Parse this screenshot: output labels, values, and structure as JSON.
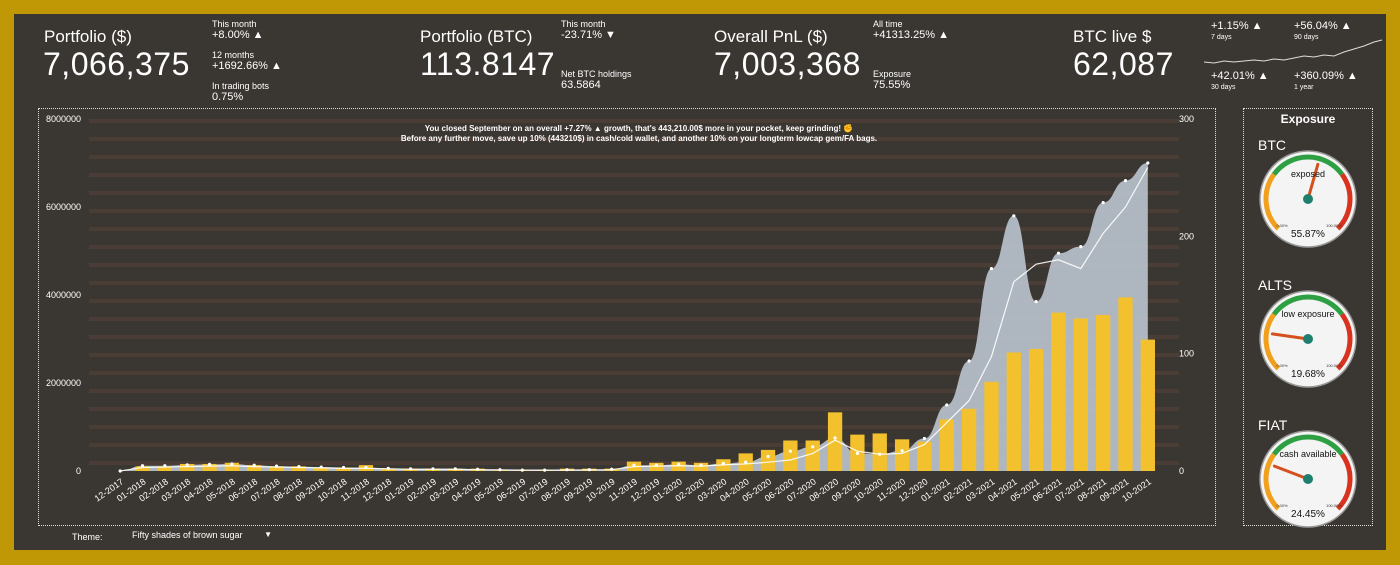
{
  "header": {
    "portfolio_usd": {
      "title": "Portfolio ($)",
      "value": "7,066,375",
      "month_label": "This month",
      "month_val": "+8.00% ▲",
      "year_label": "12 months",
      "year_val": "+1692.66% ▲",
      "bots_label": "In trading bots",
      "bots_val": "0.75%"
    },
    "portfolio_btc": {
      "title": "Portfolio (BTC)",
      "value": "113.8147",
      "month_label": "This month",
      "month_val": "-23.71% ▼",
      "net_label": "Net BTC holdings",
      "net_val": "63.5864"
    },
    "pnl": {
      "title": "Overall PnL ($)",
      "value": "7,003,368",
      "all_label": "All time",
      "all_val": "+41313.25% ▲",
      "exp_label": "Exposure",
      "exp_val": "75.55%"
    },
    "btc_live": {
      "title": "BTC live $",
      "value": "62,087"
    },
    "spark": {
      "d7_val": "+1.15% ▲",
      "d7_label": "7 days",
      "d90_val": "+56.04% ▲",
      "d90_label": "90 days",
      "d30_val": "+42.01% ▲",
      "d30_label": "30 days",
      "y1_val": "+360.09% ▲",
      "y1_label": "1 year"
    }
  },
  "theme": {
    "label": "Theme:",
    "value": "Fifty shades of brown sugar"
  },
  "colors": {
    "bar": "#f3c12e",
    "area": "#c3ccd8",
    "line": "#ffffff",
    "gauge_needle": "#d4501c",
    "gauge_hub": "#1e7f6e"
  },
  "exposure": {
    "title": "Exposure",
    "gauges": [
      {
        "name": "BTC",
        "label": "exposed",
        "value": "55.87%",
        "fraction": 0.5587,
        "min": "0.00%",
        "max": "100.00%"
      },
      {
        "name": "ALTS",
        "label": "low exposure",
        "value": "19.68%",
        "fraction": 0.1968,
        "min": "0.00%",
        "max": "100.00%"
      },
      {
        "name": "FIAT",
        "label": "cash available",
        "value": "24.45%",
        "fraction": 0.2445,
        "min": "0.00%",
        "max": "100.00%"
      }
    ]
  },
  "chart_data": {
    "type": "bar",
    "message_line1": "You closed September on an overall +7.27% ▲ growth, that's 443,210.00$ more in your pocket, keep grinding! ✊",
    "message_line2": "Before any further move, save up 10% (443210$) in cash/cold wallet, and another 10% on your longterm lowcap gem/FA bags.",
    "categories": [
      "12-2017",
      "01-2018",
      "02-2018",
      "03-2018",
      "04-2018",
      "05-2018",
      "06-2018",
      "07-2018",
      "08-2018",
      "09-2018",
      "10-2018",
      "11-2018",
      "12-2018",
      "01-2019",
      "02-2019",
      "03-2019",
      "04-2019",
      "05-2019",
      "06-2019",
      "07-2019",
      "08-2019",
      "09-2019",
      "10-2019",
      "11-2019",
      "12-2019",
      "01-2020",
      "02-2020",
      "03-2020",
      "04-2020",
      "05-2020",
      "06-2020",
      "07-2020",
      "08-2020",
      "09-2020",
      "10-2020",
      "11-2020",
      "12-2020",
      "01-2021",
      "02-2021",
      "03-2021",
      "04-2021",
      "05-2021",
      "06-2021",
      "07-2021",
      "08-2021",
      "09-2021",
      "10-2021"
    ],
    "yleft_ticks": [
      "0",
      "2000000",
      "4000000",
      "6000000",
      "8000000"
    ],
    "yleft_lim": [
      0,
      8000000
    ],
    "yright_ticks": [
      "0",
      "100",
      "200",
      "300"
    ],
    "yright_lim": [
      0,
      300
    ],
    "series": [
      {
        "type": "bar",
        "axis": "right",
        "values": [
          0,
          4,
          4,
          6,
          6,
          7,
          5,
          4,
          4,
          3,
          3,
          5,
          2,
          2,
          2,
          2,
          2,
          1,
          1,
          1,
          2,
          2,
          2,
          8,
          7,
          8,
          7,
          10,
          15,
          18,
          26,
          26,
          50,
          31,
          32,
          27,
          25,
          44,
          53,
          76,
          101,
          104,
          135,
          130,
          133,
          148,
          112
        ]
      },
      {
        "type": "area",
        "axis": "left",
        "values": [
          0,
          120000,
          120000,
          140000,
          150000,
          160000,
          130000,
          110000,
          100000,
          90000,
          80000,
          80000,
          60000,
          50000,
          50000,
          50000,
          40000,
          30000,
          20000,
          20000,
          30000,
          30000,
          40000,
          130000,
          130000,
          150000,
          130000,
          170000,
          200000,
          330000,
          450000,
          550000,
          750000,
          400000,
          380000,
          460000,
          740000,
          1500000,
          2500000,
          4600000,
          5800000,
          3850000,
          4950000,
          5100000,
          6100000,
          6600000,
          7000000
        ]
      },
      {
        "type": "line",
        "axis": "left",
        "values": [
          0,
          80000,
          90000,
          100000,
          110000,
          120000,
          100000,
          90000,
          80000,
          70000,
          60000,
          60000,
          50000,
          40000,
          40000,
          40000,
          30000,
          25000,
          20000,
          20000,
          20000,
          25000,
          30000,
          100000,
          110000,
          120000,
          110000,
          140000,
          160000,
          200000,
          250000,
          400000,
          700000,
          450000,
          380000,
          400000,
          600000,
          1100000,
          1600000,
          2600000,
          4300000,
          4700000,
          4800000,
          4600000,
          5400000,
          6000000,
          6900000
        ]
      }
    ]
  }
}
